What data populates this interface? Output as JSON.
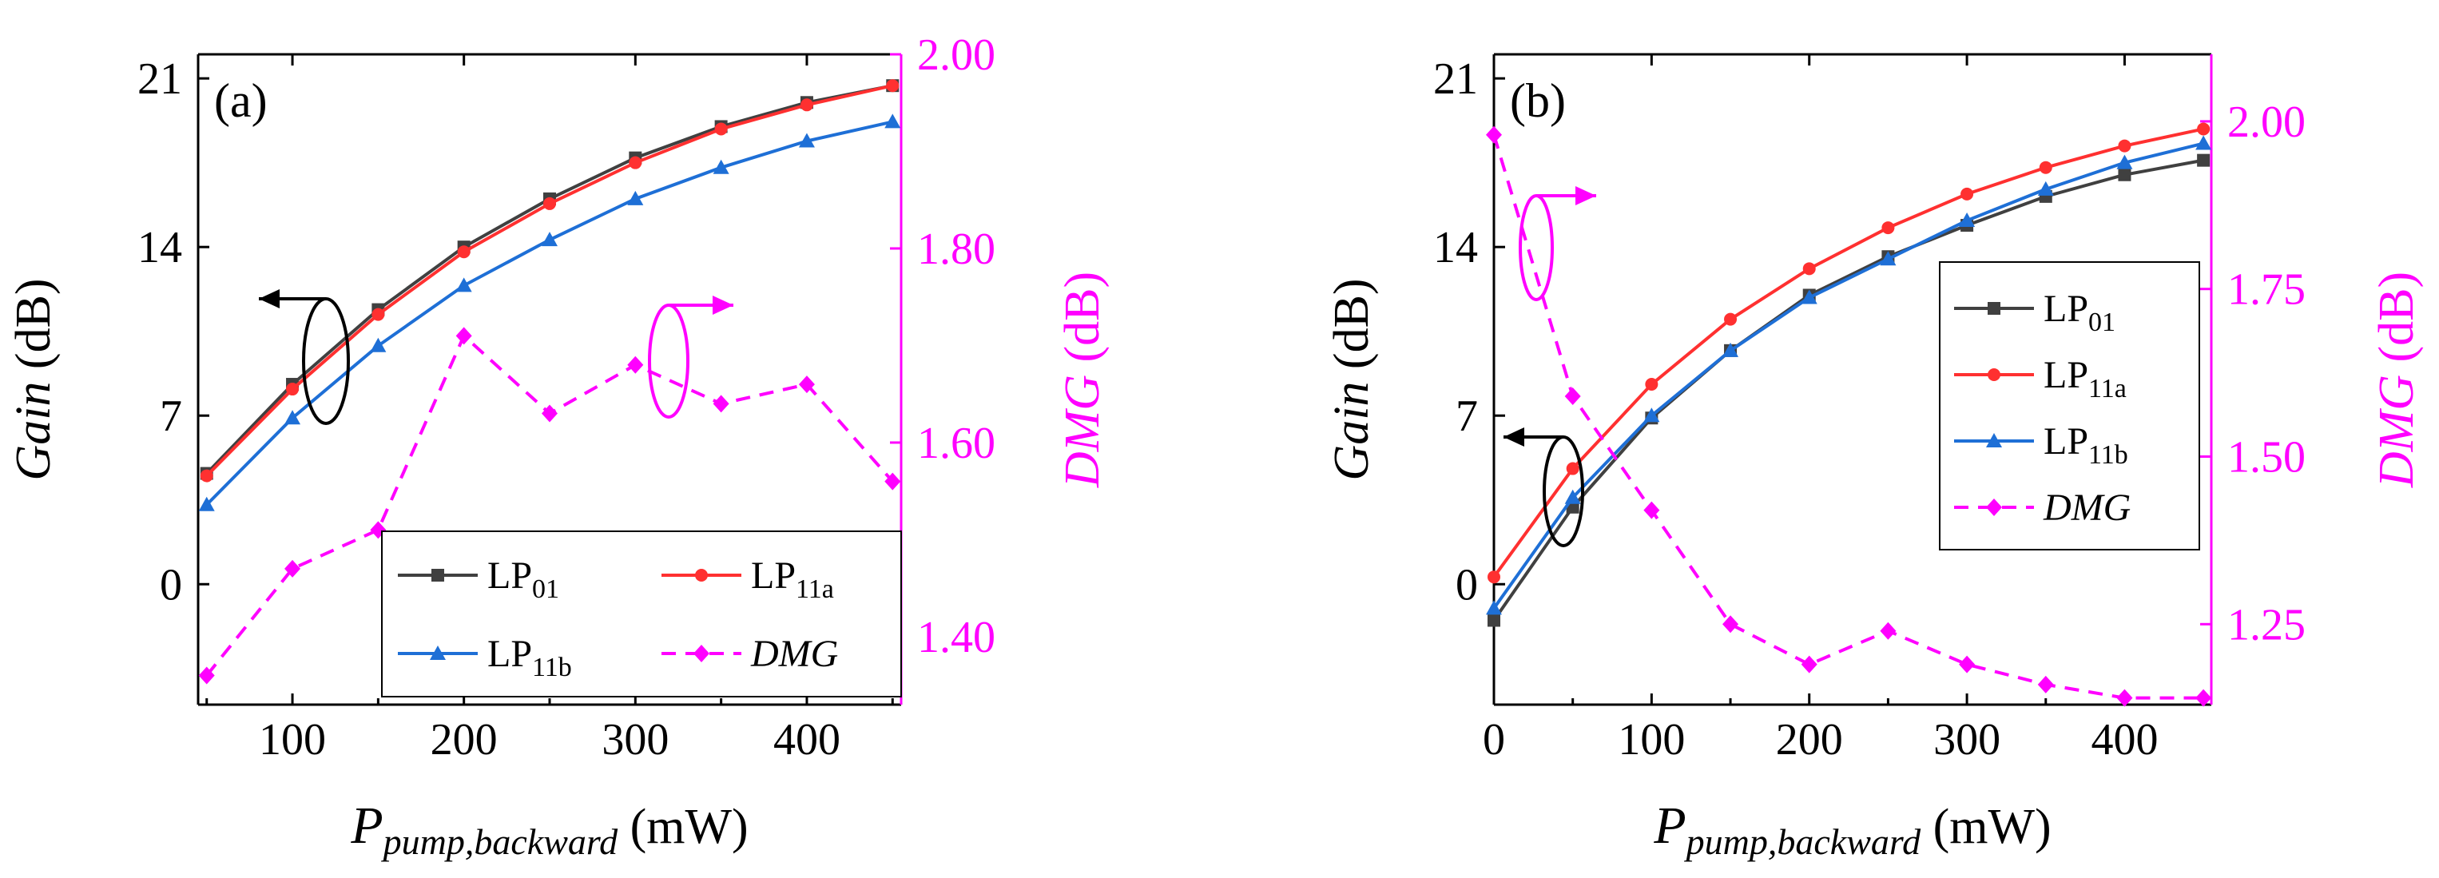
{
  "chart_data": [
    {
      "type": "line",
      "panel_label": "(a)",
      "x_label": {
        "main": "P",
        "sub": "pump,backward",
        "unit": "(mW)"
      },
      "y_left_label": {
        "italic": "Gain",
        "unit": " (dB)"
      },
      "y_right_label": {
        "italic": "DMG",
        "unit": " (dB)"
      },
      "xlim": [
        45,
        455
      ],
      "ylim_left": [
        -5,
        22
      ],
      "ylim_right": [
        1.33,
        2.0
      ],
      "x_ticks": [
        100,
        200,
        300,
        400
      ],
      "y_left_ticks": [
        0,
        7,
        14,
        21
      ],
      "y_right_ticks": [
        1.4,
        1.6,
        1.8,
        2.0
      ],
      "y_right_tick_labels": [
        "1.40",
        "1.60",
        "1.80",
        "2.00"
      ],
      "legend_placement": "bottom-right (2 columns)",
      "series": [
        {
          "name": "LP01",
          "label_main": "LP",
          "label_sub": "01",
          "axis": "left",
          "color": "#404040",
          "marker": "square",
          "dashed": false,
          "x": [
            50,
            100,
            150,
            200,
            250,
            300,
            350,
            400,
            450
          ],
          "y": [
            4.6,
            8.3,
            11.4,
            14.0,
            16.0,
            17.7,
            19.0,
            20.0,
            20.7
          ]
        },
        {
          "name": "LP11a",
          "label_main": "LP",
          "label_sub": "11a",
          "axis": "left",
          "color": "#ff3030",
          "marker": "circle",
          "dashed": false,
          "x": [
            50,
            100,
            150,
            200,
            250,
            300,
            350,
            400,
            450
          ],
          "y": [
            4.5,
            8.1,
            11.2,
            13.8,
            15.8,
            17.5,
            18.9,
            19.9,
            20.7
          ]
        },
        {
          "name": "LP11b",
          "label_main": "LP",
          "label_sub": "11b",
          "axis": "left",
          "color": "#1e6fd6",
          "marker": "triangle",
          "dashed": false,
          "x": [
            50,
            100,
            150,
            200,
            250,
            300,
            350,
            400,
            450
          ],
          "y": [
            3.3,
            6.9,
            9.9,
            12.4,
            14.3,
            16.0,
            17.3,
            18.4,
            19.2
          ]
        },
        {
          "name": "DMG",
          "label_main": "DMG",
          "label_sub": "",
          "axis": "right",
          "color": "#ff00ff",
          "marker": "diamond",
          "dashed": true,
          "x": [
            50,
            100,
            150,
            200,
            250,
            300,
            350,
            400,
            450
          ],
          "y": [
            1.36,
            1.47,
            1.51,
            1.71,
            1.63,
            1.68,
            1.64,
            1.66,
            1.56
          ]
        }
      ]
    },
    {
      "type": "line",
      "panel_label": "(b)",
      "x_label": {
        "main": "P",
        "sub": "pump,backward",
        "unit": "(mW)"
      },
      "y_left_label": {
        "italic": "Gain",
        "unit": " (dB)"
      },
      "y_right_label": {
        "italic": "DMG",
        "unit": " (dB)"
      },
      "xlim": [
        0,
        455
      ],
      "ylim_left": [
        -5,
        22
      ],
      "ylim_right": [
        1.13,
        2.1
      ],
      "x_ticks": [
        0,
        100,
        200,
        300,
        400
      ],
      "y_left_ticks": [
        0,
        7,
        14,
        21
      ],
      "y_right_ticks": [
        1.25,
        1.5,
        1.75,
        2.0
      ],
      "y_right_tick_labels": [
        "1.25",
        "1.50",
        "1.75",
        "2.00"
      ],
      "legend_placement": "right (1 column)",
      "series": [
        {
          "name": "LP01",
          "label_main": "LP",
          "label_sub": "01",
          "axis": "left",
          "color": "#404040",
          "marker": "square",
          "dashed": false,
          "x": [
            0,
            50,
            100,
            150,
            200,
            250,
            300,
            350,
            400,
            450
          ],
          "y": [
            -1.5,
            3.2,
            6.9,
            9.7,
            12.0,
            13.6,
            14.9,
            16.1,
            17.0,
            17.6
          ]
        },
        {
          "name": "LP11a",
          "label_main": "LP",
          "label_sub": "11a",
          "axis": "left",
          "color": "#ff3030",
          "marker": "circle",
          "dashed": false,
          "x": [
            0,
            50,
            100,
            150,
            200,
            250,
            300,
            350,
            400,
            450
          ],
          "y": [
            0.3,
            4.8,
            8.3,
            11.0,
            13.1,
            14.8,
            16.2,
            17.3,
            18.2,
            18.9
          ]
        },
        {
          "name": "LP11b",
          "label_main": "LP",
          "label_sub": "11b",
          "axis": "left",
          "color": "#1e6fd6",
          "marker": "triangle",
          "dashed": false,
          "x": [
            0,
            50,
            100,
            150,
            200,
            250,
            300,
            350,
            400,
            450
          ],
          "y": [
            -1.0,
            3.6,
            7.0,
            9.7,
            11.9,
            13.5,
            15.1,
            16.4,
            17.5,
            18.3
          ]
        },
        {
          "name": "DMG",
          "label_main": "DMG",
          "label_sub": "",
          "axis": "right",
          "color": "#ff00ff",
          "marker": "diamond",
          "dashed": true,
          "x": [
            0,
            50,
            100,
            150,
            200,
            250,
            300,
            350,
            400,
            450
          ],
          "y": [
            1.98,
            1.59,
            1.42,
            1.25,
            1.19,
            1.24,
            1.19,
            1.16,
            1.14,
            1.14
          ]
        }
      ]
    }
  ]
}
